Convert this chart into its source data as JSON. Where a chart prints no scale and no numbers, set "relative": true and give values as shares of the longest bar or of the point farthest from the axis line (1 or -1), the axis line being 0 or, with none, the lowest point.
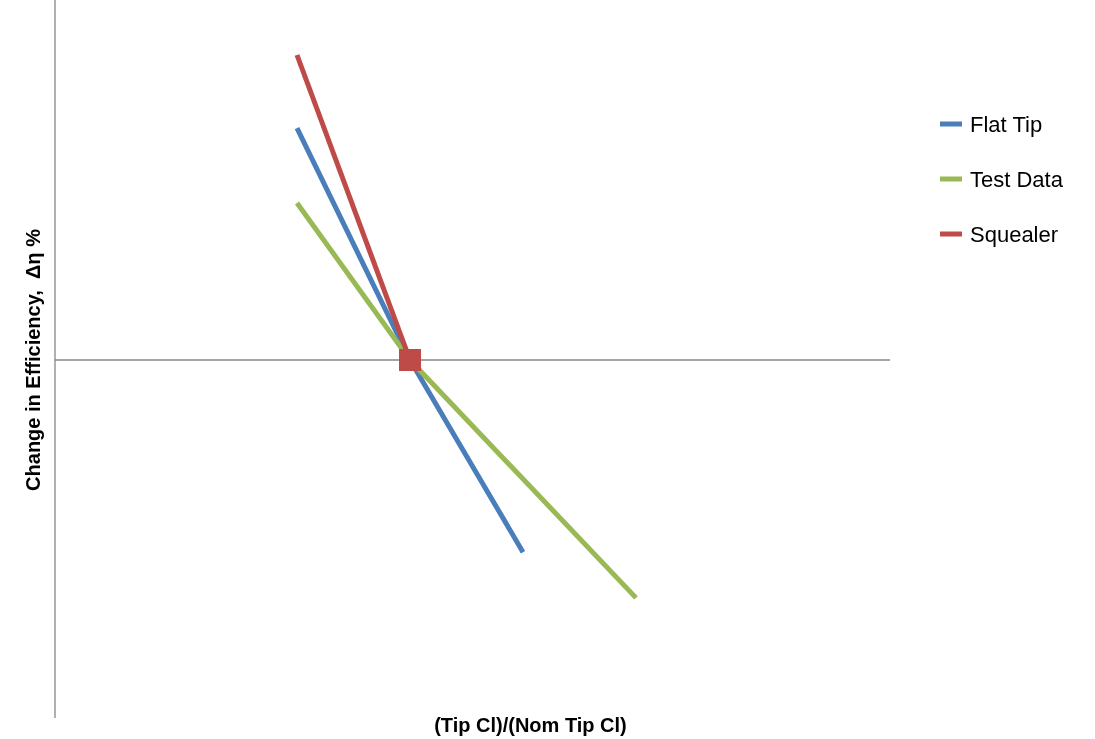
{
  "chart_data": {
    "type": "line",
    "relative": true,
    "annotations": [
      "(Tip Cl)/(Nom Tip Cl)",
      "Change in Efficiency,  Δη %"
    ],
    "legend": "right",
    "categories": [
      null,
      null,
      null,
      null
    ],
    "series": [
      {
        "name": "Flat Tip",
        "color": "#4a7ebb",
        "values": [
          0.76,
          0,
          -0.63,
          null
        ]
      },
      {
        "name": "Test Data",
        "color": "#98b954",
        "values": [
          0.515,
          0,
          null,
          -0.78
        ]
      },
      {
        "name": "Squealer",
        "color": "#be4b48",
        "marker": "square",
        "values": [
          1,
          0,
          null,
          null
        ]
      }
    ]
  }
}
